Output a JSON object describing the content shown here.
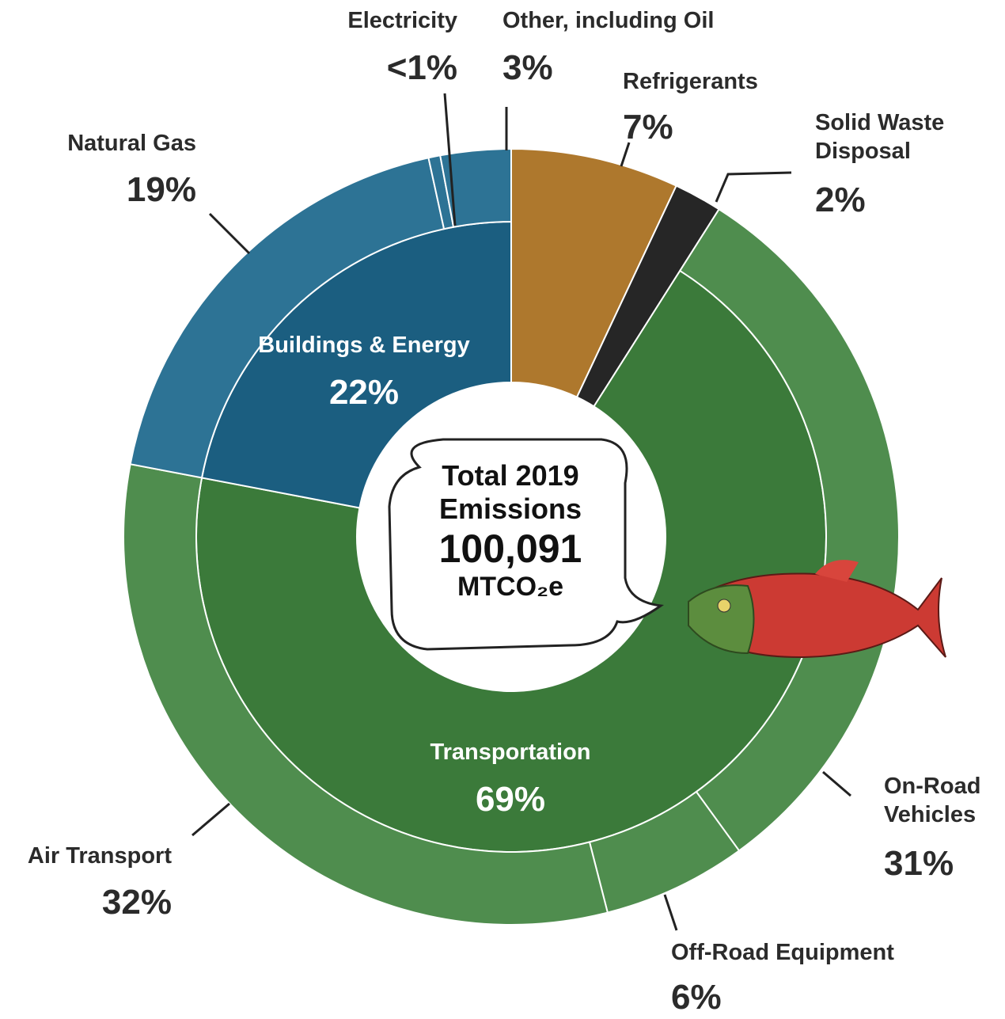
{
  "chart_data": {
    "type": "sunburst",
    "center_label": [
      "Total 2019",
      "Emissions",
      "100,091",
      "MTCO₂e"
    ],
    "segments": [
      {
        "name": "Refrigerants",
        "value": 7,
        "value_label": "7%",
        "color": "#ae782d"
      },
      {
        "name": "Solid Waste Disposal",
        "value": 2,
        "value_label": "2%",
        "color": "#262626"
      },
      {
        "name": "Transportation",
        "value": 69,
        "value_label": "69%",
        "color": "#3b7a3a",
        "children": [
          {
            "name": "On-Road Vehicles",
            "value": 31,
            "value_label": "31%",
            "color": "#4f8d4e"
          },
          {
            "name": "Off-Road Equipment",
            "value": 6,
            "value_label": "6%",
            "color": "#4f8d4e"
          },
          {
            "name": "Air Transport",
            "value": 32,
            "value_label": "32%",
            "color": "#4f8d4e"
          }
        ]
      },
      {
        "name": "Buildings & Energy",
        "value": 22,
        "value_label": "22%",
        "color": "#1b5e80",
        "children": [
          {
            "name": "Natural Gas",
            "value": 19,
            "value_label": "19%",
            "color": "#2d7395"
          },
          {
            "name": "Electricity",
            "value": 0.5,
            "value_label": "<1%",
            "color": "#2d7395"
          },
          {
            "name": "Other, including Oil",
            "value": 3,
            "value_label": "3%",
            "color": "#2d7395"
          }
        ]
      }
    ]
  }
}
